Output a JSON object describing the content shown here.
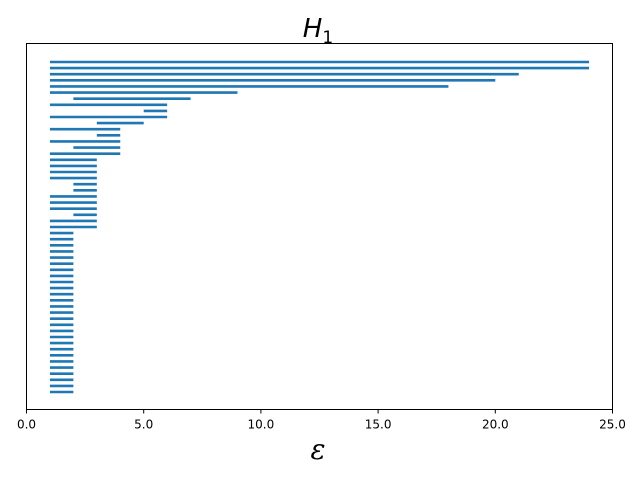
{
  "chart_data": {
    "type": "barcode",
    "title": "H",
    "title_subscript": "1",
    "xlabel": "ε",
    "ylabel": "",
    "xlim": [
      0,
      25
    ],
    "xticks": [
      0,
      5,
      10,
      15,
      20,
      25
    ],
    "xtick_labels": [
      "0.0",
      "5.0",
      "10.0",
      "15.0",
      "20.0",
      "25.0"
    ],
    "yticks_visible": false,
    "grid": false,
    "color": "#1f77b4",
    "bars": [
      [
        1,
        24
      ],
      [
        1,
        24
      ],
      [
        1,
        21
      ],
      [
        1,
        20
      ],
      [
        1,
        18
      ],
      [
        1,
        9
      ],
      [
        2,
        7
      ],
      [
        1,
        6
      ],
      [
        5,
        6
      ],
      [
        1,
        6
      ],
      [
        3,
        5
      ],
      [
        1,
        4
      ],
      [
        3,
        4
      ],
      [
        1,
        4
      ],
      [
        2,
        4
      ],
      [
        1,
        4
      ],
      [
        1,
        3
      ],
      [
        1,
        3
      ],
      [
        1,
        3
      ],
      [
        1,
        3
      ],
      [
        2,
        3
      ],
      [
        2,
        3
      ],
      [
        1,
        3
      ],
      [
        1,
        3
      ],
      [
        1,
        3
      ],
      [
        2,
        3
      ],
      [
        1,
        3
      ],
      [
        1,
        3
      ],
      [
        1,
        2
      ],
      [
        1,
        2
      ],
      [
        1,
        2
      ],
      [
        1,
        2
      ],
      [
        1,
        2
      ],
      [
        1,
        2
      ],
      [
        1,
        2
      ],
      [
        1,
        2
      ],
      [
        1,
        2
      ],
      [
        1,
        2
      ],
      [
        1,
        2
      ],
      [
        1,
        2
      ],
      [
        1,
        2
      ],
      [
        1,
        2
      ],
      [
        1,
        2
      ],
      [
        1,
        2
      ],
      [
        1,
        2
      ],
      [
        1,
        2
      ],
      [
        1,
        2
      ],
      [
        1,
        2
      ],
      [
        1,
        2
      ],
      [
        1,
        2
      ],
      [
        1,
        2
      ],
      [
        1,
        2
      ],
      [
        1,
        2
      ],
      [
        1,
        2
      ],
      [
        1,
        2
      ]
    ]
  }
}
